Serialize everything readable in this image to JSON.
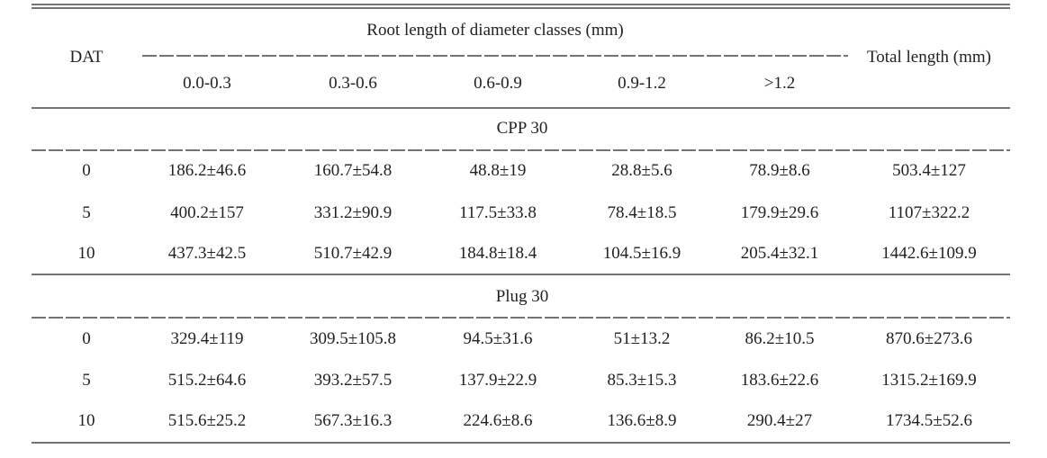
{
  "header": {
    "dat": "DAT",
    "group": "Root length of diameter classes (mm)",
    "classes": [
      "0.0-0.3",
      "0.3-0.6",
      "0.6-0.9",
      "0.9-1.2",
      ">1.2"
    ],
    "total": "Total length (mm)"
  },
  "sections": [
    {
      "name": "CPP 30",
      "rows": [
        [
          "0",
          "186.2±46.6",
          "160.7±54.8",
          "48.8±19",
          "28.8±5.6",
          "78.9±8.6",
          "503.4±127"
        ],
        [
          "5",
          "400.2±157",
          "331.2±90.9",
          "117.5±33.8",
          "78.4±18.5",
          "179.9±29.6",
          "1107±322.2"
        ],
        [
          "10",
          "437.3±42.5",
          "510.7±42.9",
          "184.8±18.4",
          "104.5±16.9",
          "205.4±32.1",
          "1442.6±109.9"
        ]
      ]
    },
    {
      "name": "Plug 30",
      "rows": [
        [
          "0",
          "329.4±119",
          "309.5±105.8",
          "94.5±31.6",
          "51±13.2",
          "86.2±10.5",
          "870.6±273.6"
        ],
        [
          "5",
          "515.2±64.6",
          "393.2±57.5",
          "137.9±22.9",
          "85.3±15.3",
          "183.6±22.6",
          "1315.2±169.9"
        ],
        [
          "10",
          "515.6±25.2",
          "567.3±16.3",
          "224.6±8.6",
          "136.6±8.9",
          "290.4±27",
          "1734.5±52.6"
        ]
      ]
    }
  ]
}
